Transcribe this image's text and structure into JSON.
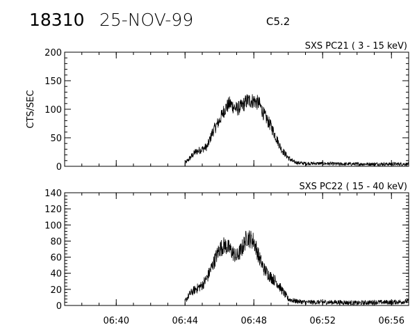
{
  "header": {
    "event_id": "18310",
    "date": "25-NOV-99",
    "flare_class": "C5.2"
  },
  "chart_data": [
    {
      "type": "line",
      "title": "SXS PC21  (  3 - 15 keV)",
      "ylabel": "CTS/SEC",
      "xlim": [
        "06:37",
        "06:57"
      ],
      "ylim": [
        0,
        200
      ],
      "yticks": [
        0,
        50,
        100,
        150,
        200
      ],
      "xticks": [
        "06:40",
        "06:44",
        "06:48",
        "06:52",
        "06:56"
      ],
      "series": [
        {
          "x": [
            "06:44.0",
            "06:44.3",
            "06:44.6",
            "06:45.0",
            "06:45.3",
            "06:45.6",
            "06:46.0",
            "06:46.3",
            "06:46.6",
            "06:47.0",
            "06:47.3",
            "06:47.6",
            "06:48.0",
            "06:48.3",
            "06:48.6",
            "06:49.0",
            "06:49.3",
            "06:49.6",
            "06:50.0",
            "06:50.3",
            "06:50.6",
            "06:51.0",
            "06:52.0",
            "06:53.0",
            "06:54.0",
            "06:55.0",
            "06:56.0",
            "06:57.0"
          ],
          "y": [
            5,
            15,
            25,
            30,
            35,
            60,
            80,
            100,
            110,
            100,
            105,
            115,
            115,
            110,
            90,
            70,
            50,
            30,
            15,
            8,
            6,
            5,
            5,
            4,
            4,
            4,
            4,
            4
          ]
        }
      ]
    },
    {
      "type": "line",
      "title": "SXS PC22  ( 15 - 40 keV)",
      "ylabel": "",
      "xlim": [
        "06:37",
        "06:57"
      ],
      "ylim": [
        0,
        140
      ],
      "yticks": [
        0,
        20,
        40,
        60,
        80,
        100,
        120,
        140
      ],
      "xticks": [
        "06:40",
        "06:44",
        "06:48",
        "06:52",
        "06:56"
      ],
      "series": [
        {
          "x": [
            "06:44.0",
            "06:44.3",
            "06:44.6",
            "06:45.0",
            "06:45.3",
            "06:45.6",
            "06:46.0",
            "06:46.3",
            "06:46.6",
            "06:47.0",
            "06:47.3",
            "06:47.6",
            "06:48.0",
            "06:48.3",
            "06:48.6",
            "06:49.0",
            "06:49.3",
            "06:49.6",
            "06:50.0",
            "06:50.3",
            "06:50.6",
            "06:51.0",
            "06:52.0",
            "06:53.0",
            "06:54.0",
            "06:55.0",
            "06:56.0",
            "06:57.0"
          ],
          "y": [
            5,
            15,
            20,
            25,
            35,
            50,
            70,
            75,
            70,
            60,
            70,
            85,
            80,
            60,
            45,
            35,
            30,
            20,
            8,
            6,
            5,
            4,
            4,
            4,
            3,
            4,
            4,
            5
          ]
        }
      ]
    }
  ]
}
